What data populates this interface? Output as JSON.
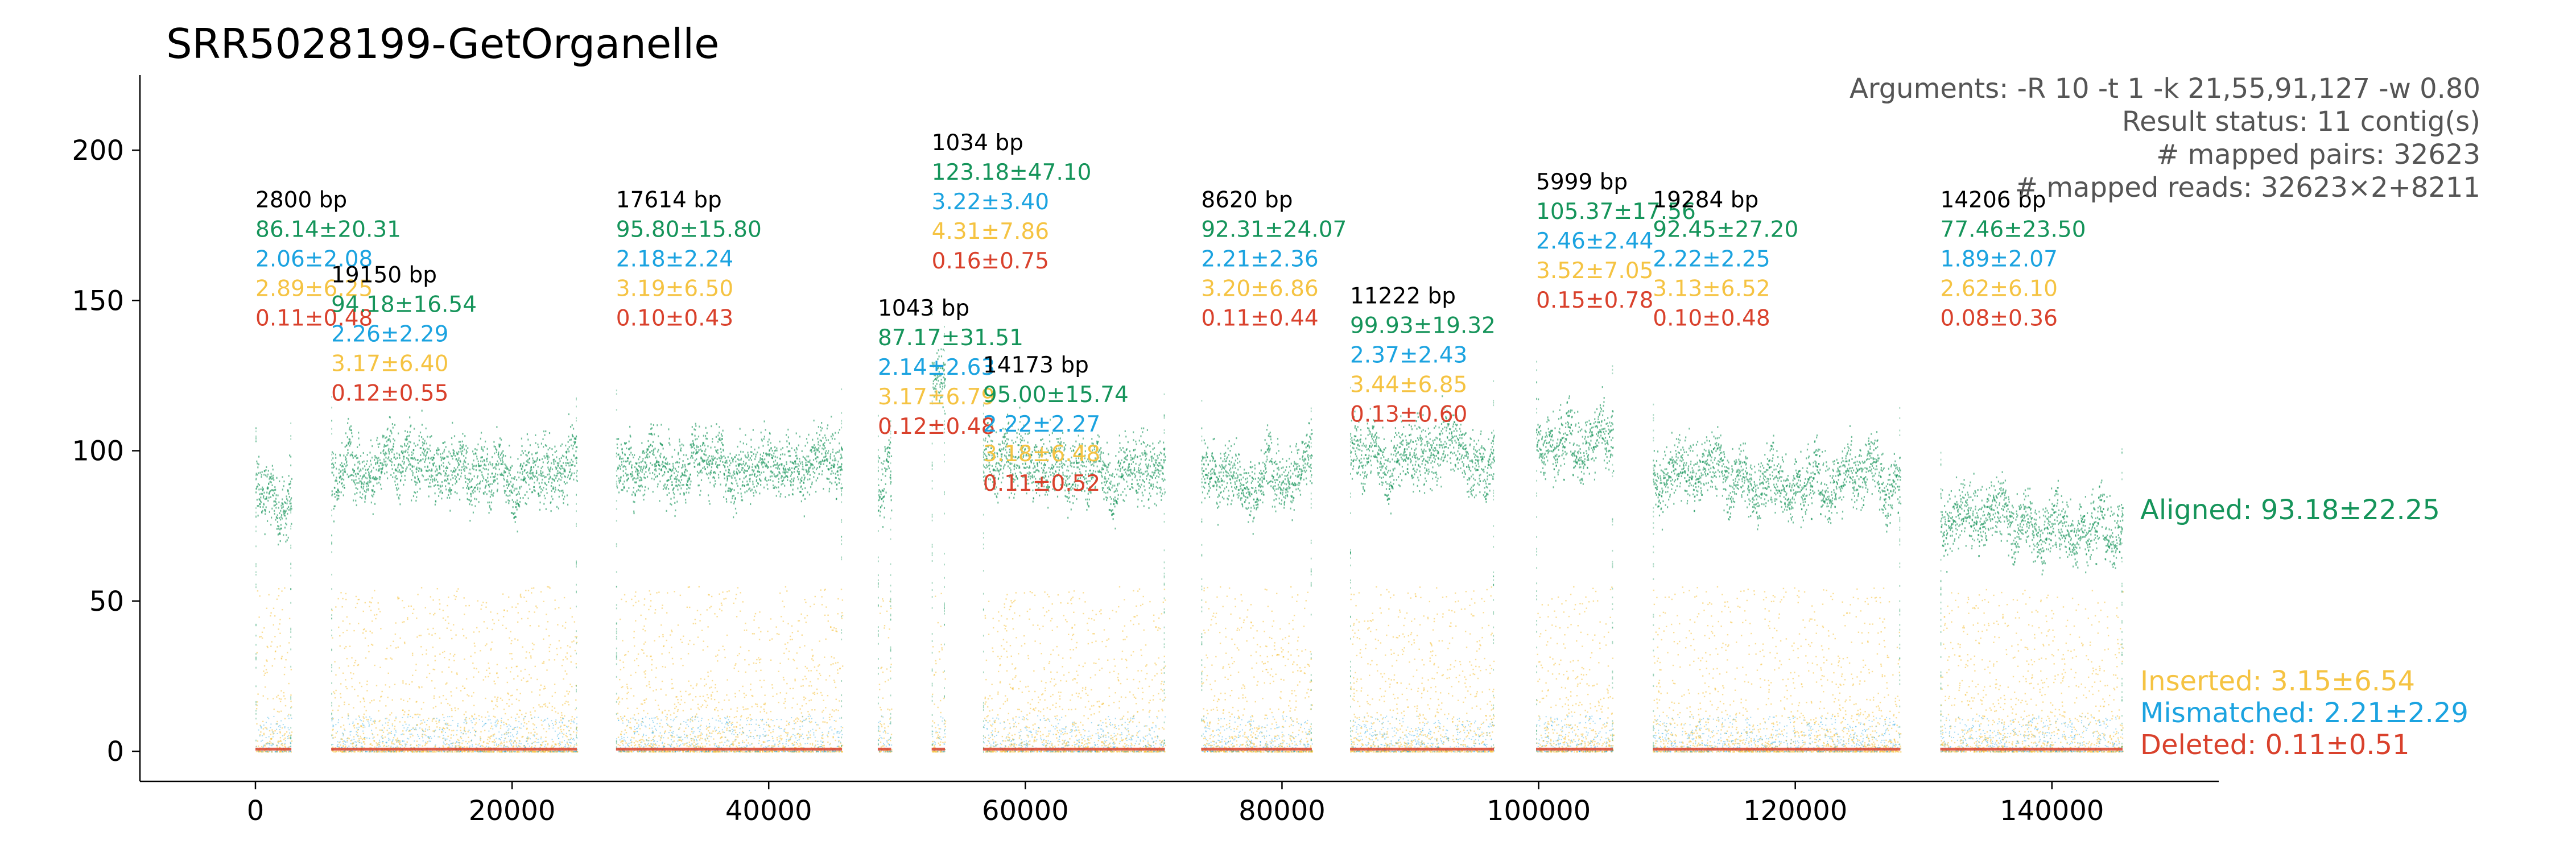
{
  "chart_data": {
    "type": "scatter",
    "title": "SRR5028199-GetOrganelle",
    "xlabel": "",
    "ylabel": "",
    "xlim": [
      -9000,
      153000
    ],
    "ylim": [
      -10,
      225
    ],
    "xticks": [
      0,
      20000,
      40000,
      60000,
      80000,
      100000,
      120000,
      140000
    ],
    "xtick_labels": [
      "0",
      "20000",
      "40000",
      "60000",
      "80000",
      "100000",
      "120000",
      "140000"
    ],
    "yticks": [
      0,
      50,
      100,
      150,
      200
    ],
    "ytick_labels": [
      "0",
      "50",
      "100",
      "150",
      "200"
    ],
    "colors": {
      "aligned": "#15945a",
      "mismatched": "#1ba3e0",
      "inserted": "#f5c342",
      "deleted": "#d9412c",
      "contig_label": "#000000",
      "info": "#555555"
    },
    "info_lines": [
      "Arguments: -R 10 -t 1 -k 21,55,91,127 -w 0.80",
      "Result status: 11 contig(s)",
      "# mapped pairs: 32623",
      "# mapped reads: 32623×2+8211"
    ],
    "contigs": [
      {
        "start": 0,
        "end": 2800,
        "mean": 86,
        "label": "2800 bp",
        "aligned": "86.14±20.31",
        "mismatched": "2.06±2.08",
        "inserted": "2.89±6.25",
        "deleted": "0.11±0.48"
      },
      {
        "start": 5900,
        "end": 25050,
        "mean": 94,
        "label": "19150 bp",
        "aligned": "94.18±16.54",
        "mismatched": "2.26±2.29",
        "inserted": "3.17±6.40",
        "deleted": "0.12±0.55"
      },
      {
        "start": 28100,
        "end": 45714,
        "mean": 96,
        "label": "17614 bp",
        "aligned": "95.80±15.80",
        "mismatched": "2.18±2.24",
        "inserted": "3.19±6.50",
        "deleted": "0.10±0.43"
      },
      {
        "start": 48500,
        "end": 49543,
        "mean": 87,
        "label": "1043 bp",
        "aligned": "87.17±31.51",
        "mismatched": "2.14±2.63",
        "inserted": "3.17±6.79",
        "deleted": "0.12±0.48"
      },
      {
        "start": 52700,
        "end": 53734,
        "mean": 123,
        "label": "1034 bp",
        "aligned": "123.18±47.10",
        "mismatched": "3.22±3.40",
        "inserted": "4.31±7.86",
        "deleted": "0.16±0.75"
      },
      {
        "start": 56700,
        "end": 70873,
        "mean": 95,
        "label": "14173 bp",
        "aligned": "95.00±15.74",
        "mismatched": "2.22±2.27",
        "inserted": "3.18±6.48",
        "deleted": "0.11±0.52"
      },
      {
        "start": 73700,
        "end": 82320,
        "mean": 92,
        "label": "8620 bp",
        "aligned": "92.31±24.07",
        "mismatched": "2.21±2.36",
        "inserted": "3.20±6.86",
        "deleted": "0.11±0.44"
      },
      {
        "start": 85300,
        "end": 96522,
        "mean": 100,
        "label": "11222 bp",
        "aligned": "99.93±19.32",
        "mismatched": "2.37±2.43",
        "inserted": "3.44±6.85",
        "deleted": "0.13±0.60"
      },
      {
        "start": 99800,
        "end": 105799,
        "mean": 105,
        "label": "5999 bp",
        "aligned": "105.37±17.56",
        "mismatched": "2.46±2.44",
        "inserted": "3.52±7.05",
        "deleted": "0.15±0.78"
      },
      {
        "start": 108900,
        "end": 128184,
        "mean": 92,
        "label": "19284 bp",
        "aligned": "92.45±27.20",
        "mismatched": "2.22±2.25",
        "inserted": "3.13±6.52",
        "deleted": "0.10±0.48"
      },
      {
        "start": 131300,
        "end": 145506,
        "mean": 77,
        "label": "14206 bp",
        "aligned": "77.46±23.50",
        "mismatched": "1.89±2.07",
        "inserted": "2.62±6.10",
        "deleted": "0.08±0.36"
      }
    ],
    "summary": {
      "aligned": "Aligned: 93.18±22.25",
      "inserted": "Inserted: 3.15±6.54",
      "mismatched": "Mismatched: 2.21±2.29",
      "deleted": "Deleted: 0.11±0.51"
    }
  }
}
